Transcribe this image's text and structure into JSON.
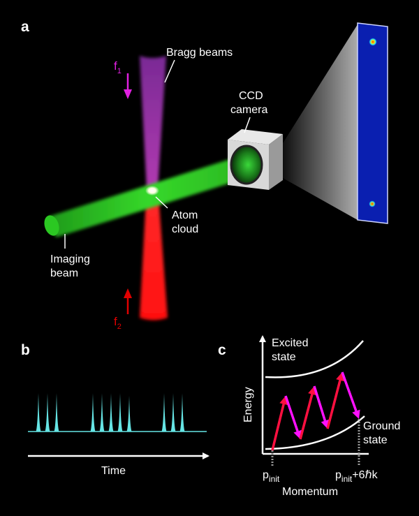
{
  "panels": {
    "a": "a",
    "b": "b",
    "c": "c"
  },
  "panel_a": {
    "bragg_beams": "Bragg beams",
    "f1": "f",
    "f1_sub": "1",
    "f2": "f",
    "f2_sub": "2",
    "ccd_line1": "CCD",
    "ccd_line2": "camera",
    "atom_line1": "Atom",
    "atom_line2": "cloud",
    "imaging_line1": "Imaging",
    "imaging_line2": "beam",
    "colors": {
      "f1_arrow": "#e020e0",
      "f2_arrow": "#e00000",
      "upper_beam": "#9a33b8",
      "lower_beam": "#ff1a1a",
      "imaging_beam": "#33dd22",
      "ccd_image_bg": "#0a1fb0"
    }
  },
  "panel_b": {
    "time_label": "Time",
    "pulse_groups": [
      3,
      5,
      3
    ],
    "pulse_color": "#66e5e5"
  },
  "panel_c": {
    "excited_line1": "Excited",
    "excited_line2": "state",
    "ground_line1": "Ground",
    "ground_line2": "state",
    "energy_label": "Energy",
    "momentum_label": "Momentum",
    "pinit": "p",
    "pinit_sub": "init",
    "pinit2": "p",
    "pinit2_sub": "init",
    "pinit2_suffix": "+6ℏk",
    "transitions": 3,
    "colors": {
      "absorb": "#ff1040",
      "emit": "#ff10ff"
    }
  }
}
